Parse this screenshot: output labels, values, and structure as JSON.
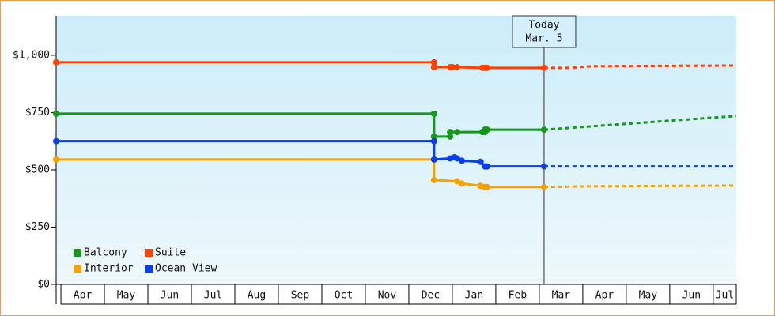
{
  "chart_data": {
    "type": "line",
    "ylim": [
      0,
      1172
    ],
    "yticks": [
      {
        "value": 0,
        "label": "$0"
      },
      {
        "value": 250,
        "label": "$250"
      },
      {
        "value": 500,
        "label": "$500"
      },
      {
        "value": 750,
        "label": "$750"
      },
      {
        "value": 1000,
        "label": "$1,000"
      }
    ],
    "xlim": [
      -0.11,
      15.53
    ],
    "xticks": [
      {
        "value": 0,
        "label": "Apr"
      },
      {
        "value": 1,
        "label": "May"
      },
      {
        "value": 2,
        "label": "Jun"
      },
      {
        "value": 3,
        "label": "Jul"
      },
      {
        "value": 4,
        "label": "Aug"
      },
      {
        "value": 5,
        "label": "Sep"
      },
      {
        "value": 6,
        "label": "Oct"
      },
      {
        "value": 7,
        "label": "Nov"
      },
      {
        "value": 8,
        "label": "Dec"
      },
      {
        "value": 9,
        "label": "Jan"
      },
      {
        "value": 10,
        "label": "Feb"
      },
      {
        "value": 11,
        "label": "Mar"
      },
      {
        "value": 12,
        "label": "Apr"
      },
      {
        "value": 13,
        "label": "May"
      },
      {
        "value": 14,
        "label": "Jun"
      },
      {
        "value": 15,
        "label": "Jul"
      }
    ],
    "today": {
      "x": 11.11,
      "label_lines": [
        "Today",
        "Mar. 5"
      ]
    },
    "series": [
      {
        "name": "Balcony",
        "color": "#16981a",
        "x": [
          -0.11,
          8.58,
          8.58,
          8.95,
          8.95,
          9.11,
          9.69,
          9.75,
          9.75,
          9.8,
          11.11
        ],
        "values": [
          745,
          745,
          645,
          645,
          665,
          665,
          665,
          665,
          675,
          675,
          675
        ],
        "forecast": {
          "x": [
            11.11,
            15.53
          ],
          "values": [
            675,
            735
          ]
        }
      },
      {
        "name": "Suite",
        "color": "#ff4000",
        "x": [
          -0.11,
          8.58,
          8.58,
          8.95,
          9.0,
          9.11,
          9.69,
          9.75,
          9.8,
          11.11
        ],
        "values": [
          969,
          969,
          948,
          948,
          948,
          948,
          945,
          945,
          945,
          945
        ],
        "forecast": {
          "x": [
            11.11,
            11.7,
            12.2,
            15.53
          ],
          "values": [
            945,
            945,
            952,
            955
          ]
        }
      },
      {
        "name": "Interior",
        "color": "#f5a300",
        "x": [
          -0.11,
          8.58,
          8.58,
          9.11,
          9.22,
          9.65,
          9.75,
          9.8,
          11.11
        ],
        "values": [
          545,
          545,
          455,
          450,
          440,
          430,
          425,
          425,
          425
        ],
        "forecast": {
          "x": [
            11.11,
            12.2,
            15.53
          ],
          "values": [
            425,
            428,
            431
          ]
        }
      },
      {
        "name": "Ocean View",
        "color": "#0a3cf0",
        "x": [
          -0.11,
          8.58,
          8.58,
          8.95,
          9.05,
          9.11,
          9.22,
          9.65,
          9.75,
          9.8,
          11.11
        ],
        "values": [
          625,
          625,
          545,
          550,
          555,
          550,
          540,
          535,
          515,
          515,
          515
        ],
        "forecast": {
          "x": [
            11.11,
            15.53
          ],
          "values": [
            515,
            515
          ]
        }
      }
    ]
  }
}
